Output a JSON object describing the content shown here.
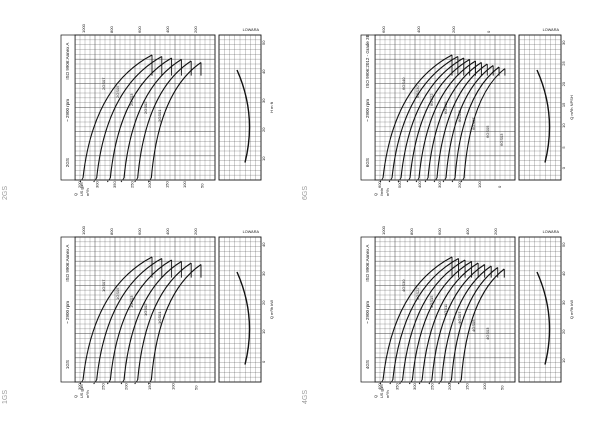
{
  "charts": [
    {
      "id": "2GS",
      "label": "2GS",
      "rpm": "~ 2900 rpm",
      "standard": "ISO 9906:Annex A",
      "brand": "LOWARA",
      "curves": 6,
      "labels": [
        "2GS07",
        "2GS05",
        "2GS03",
        "2GS02",
        "2GS01"
      ],
      "bottom_ticks": [
        "200",
        "300",
        "350",
        "250",
        "200",
        "150",
        "100",
        "50"
      ],
      "top_ticks": [
        "1000",
        "800",
        "600",
        "400",
        "200"
      ],
      "axis_small_left": [
        "Q",
        "US gpm",
        "m³/h"
      ],
      "right_ticks": [
        "50",
        "40",
        "30",
        "20",
        "10"
      ],
      "ylabel_right": "H  m  ft"
    },
    {
      "id": "6GS",
      "label": "6GS",
      "rpm": "~ 2900 rpm",
      "standard": "ISO 9906:2012 - Grade 3B",
      "brand": "LOWARA",
      "curves": 10,
      "labels": [
        "6GS40",
        "6GS30",
        "6GS22",
        "6GS15",
        "6GS11",
        "6GS07",
        "6GS05",
        "6GS03"
      ],
      "bottom_ticks": [
        "600",
        "500",
        "400",
        "300",
        "200",
        "100",
        "0"
      ],
      "top_ticks": [
        "600",
        "400",
        "200",
        "0"
      ],
      "axis_small_left": [
        "Q",
        "l/min",
        "m³/h"
      ],
      "right_ticks": [
        "30",
        "25",
        "20",
        "15",
        "10",
        "5",
        "0"
      ],
      "ylabel_right": "Q m³/h  NPSH"
    },
    {
      "id": "1GS",
      "label": "1GS",
      "rpm": "~ 2900 rpm",
      "standard": "ISO 9906:Annex A",
      "brand": "LOWARA",
      "curves": 6,
      "labels": [
        "1GS07",
        "1GS05",
        "1GS03",
        "1GS02",
        "1GS01"
      ],
      "bottom_ticks": [
        "300",
        "250",
        "200",
        "150",
        "100",
        "50"
      ],
      "top_ticks": [
        "1000",
        "800",
        "600",
        "400",
        "200"
      ],
      "axis_small_left": [
        "Q",
        "US gpm",
        "m³/h"
      ],
      "right_ticks": [
        "40",
        "30",
        "20",
        "10",
        "0"
      ],
      "ylabel_right": "Q m³/h  kW"
    },
    {
      "id": "4GS",
      "label": "4GS",
      "rpm": "~ 2900 rpm",
      "standard": "ISO 9906:Annex A",
      "brand": "LOWARA",
      "curves": 9,
      "labels": [
        "4GS30",
        "4GS22",
        "4GS15",
        "4GS11",
        "4GS07",
        "4GS05",
        "4GS03"
      ],
      "bottom_ticks": [
        "400",
        "350",
        "300",
        "250",
        "200",
        "150",
        "100",
        "50"
      ],
      "top_ticks": [
        "1000",
        "800",
        "600",
        "400",
        "200"
      ],
      "axis_small_left": [
        "Q",
        "US gpm",
        "m³/h"
      ],
      "right_ticks": [
        "50",
        "40",
        "30",
        "20",
        "10"
      ],
      "ylabel_right": "Q m³/h  kW"
    }
  ],
  "chart_data": [
    {
      "type": "line",
      "title": "2GS",
      "series": [
        {
          "name": "2GS07"
        },
        {
          "name": "2GS05"
        },
        {
          "name": "2GS03"
        },
        {
          "name": "2GS02"
        },
        {
          "name": "2GS01"
        }
      ]
    },
    {
      "type": "line",
      "title": "6GS",
      "series": [
        {
          "name": "6GS40"
        },
        {
          "name": "6GS30"
        },
        {
          "name": "6GS22"
        },
        {
          "name": "6GS15"
        },
        {
          "name": "6GS11"
        },
        {
          "name": "6GS07"
        },
        {
          "name": "6GS05"
        },
        {
          "name": "6GS03"
        }
      ]
    },
    {
      "type": "line",
      "title": "1GS",
      "series": [
        {
          "name": "1GS07"
        },
        {
          "name": "1GS05"
        },
        {
          "name": "1GS03"
        },
        {
          "name": "1GS02"
        },
        {
          "name": "1GS01"
        }
      ]
    },
    {
      "type": "line",
      "title": "4GS",
      "series": [
        {
          "name": "4GS30"
        },
        {
          "name": "4GS22"
        },
        {
          "name": "4GS15"
        },
        {
          "name": "4GS11"
        },
        {
          "name": "4GS07"
        },
        {
          "name": "4GS05"
        },
        {
          "name": "4GS03"
        }
      ]
    }
  ],
  "colors": {
    "line": "#111111",
    "grid": "#444444",
    "label": "#9a9a9a"
  }
}
